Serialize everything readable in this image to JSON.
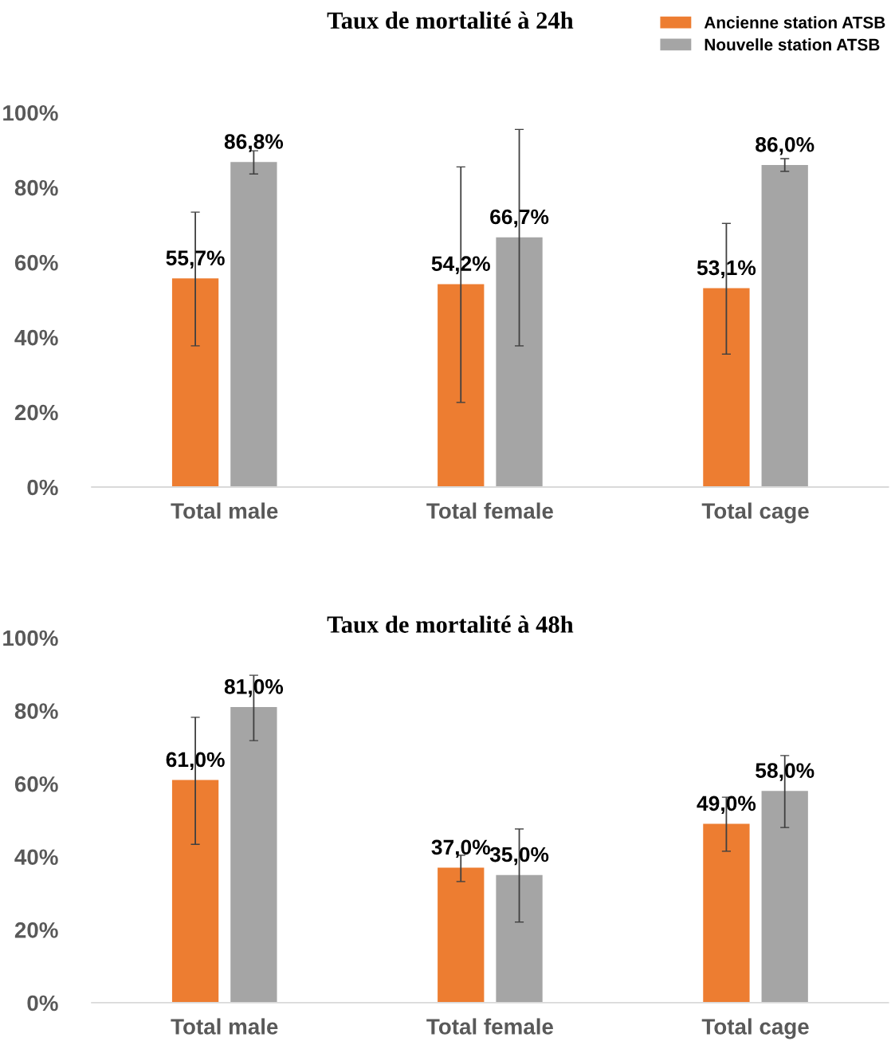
{
  "chart_data": [
    {
      "type": "bar",
      "title": "Taux de mortalité à 24h",
      "categories": [
        "Total male",
        "Total female",
        "Total cage"
      ],
      "series": [
        {
          "name": "Ancienne station ATSB",
          "color": "#ed7d31",
          "values": [
            55.7,
            54.2,
            53.1
          ],
          "value_labels": [
            "55,7%",
            "54,2%",
            "53,1%"
          ],
          "errors": [
            [
              37.7,
              73.4
            ],
            [
              22.6,
              85.5
            ],
            [
              35.5,
              70.4
            ]
          ]
        },
        {
          "name": "Nouvelle station ATSB",
          "color": "#a5a5a5",
          "values": [
            86.8,
            66.7,
            86.0
          ],
          "value_labels": [
            "86,8%",
            "66,7%",
            "86,0%"
          ],
          "errors": [
            [
              83.6,
              89.8
            ],
            [
              37.7,
              95.5
            ],
            [
              84.3,
              87.7
            ]
          ]
        }
      ],
      "ylim": [
        0,
        100
      ],
      "yticks": [
        {
          "value": 0,
          "label": "0%"
        },
        {
          "value": 20,
          "label": "20%"
        },
        {
          "value": 40,
          "label": "40%"
        },
        {
          "value": 60,
          "label": "60%"
        },
        {
          "value": 80,
          "label": "80%"
        },
        {
          "value": 100,
          "label": "100%"
        }
      ],
      "grid": false,
      "legend": "top right"
    },
    {
      "type": "bar",
      "title": "Taux de mortalité à 48h",
      "categories": [
        "Total male",
        "Total female",
        "Total cage"
      ],
      "series": [
        {
          "color": "#ed7d31",
          "values": [
            61.0,
            37.0,
            49.0
          ],
          "value_labels": [
            "61,0%",
            "37,0%",
            "49,0%"
          ],
          "errors": [
            [
              43.4,
              78.2
            ],
            [
              33.2,
              40.4
            ],
            [
              41.5,
              56.3
            ]
          ]
        },
        {
          "color": "#a5a5a5",
          "values": [
            81.0,
            35.0,
            58.0
          ],
          "value_labels": [
            "81,0%",
            "35,0%",
            "58,0%"
          ],
          "errors": [
            [
              71.8,
              89.7
            ],
            [
              22.1,
              47.6
            ],
            [
              48.0,
              67.7
            ]
          ]
        }
      ],
      "ylim": [
        0,
        100
      ],
      "yticks": [
        {
          "value": 0,
          "label": "0%"
        },
        {
          "value": 20,
          "label": "20%"
        },
        {
          "value": 40,
          "label": "40%"
        },
        {
          "value": 60,
          "label": "60%"
        },
        {
          "value": 80,
          "label": "80%"
        },
        {
          "value": 100,
          "label": "100%"
        }
      ],
      "grid": false
    }
  ]
}
